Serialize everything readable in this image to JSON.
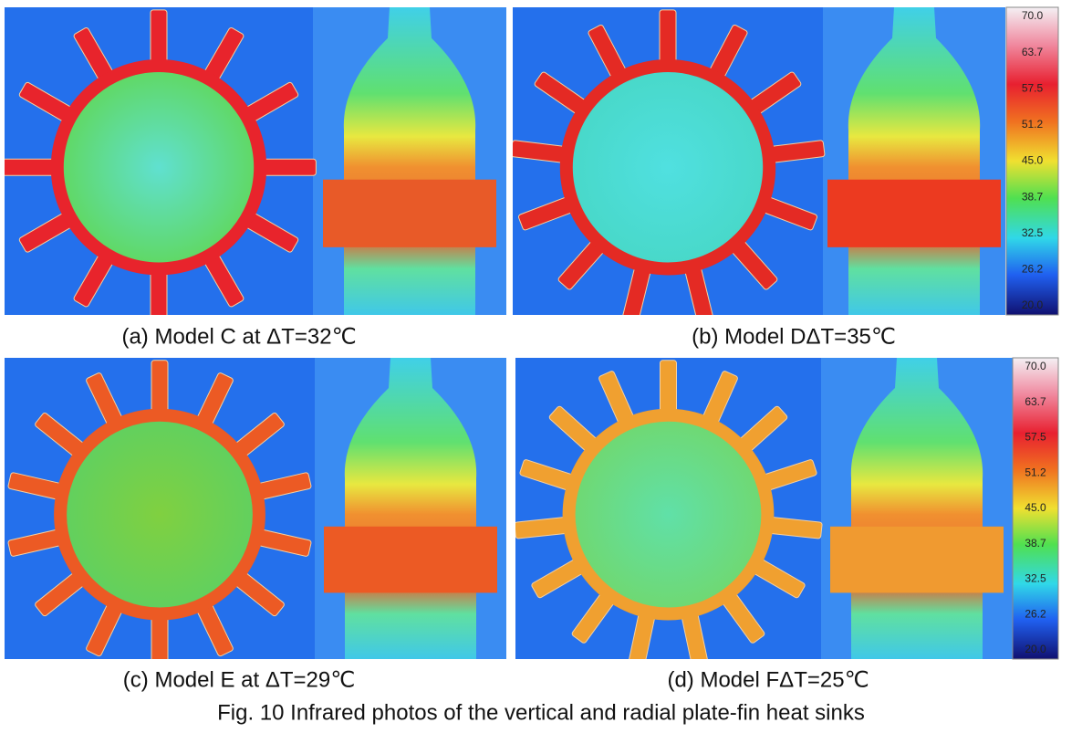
{
  "panels": [
    {
      "caption": "(a) Model C at  ΔT=32℃"
    },
    {
      "caption": "(b) Model DΔT=35℃"
    },
    {
      "caption": "(c) Model E at  ΔT=29℃"
    },
    {
      "caption": "(d) Model FΔT=25℃"
    }
  ],
  "colorbars": [
    {
      "labels": [
        "70.0",
        "63.7",
        "57.5",
        "51.2",
        "45.0",
        "38.7",
        "32.5",
        "26.2",
        "20.0"
      ]
    },
    {
      "labels": [
        "70.0",
        "63.7",
        "57.5",
        "51.2",
        "45.0",
        "38.7",
        "32.5",
        "26.2",
        "20.0"
      ]
    }
  ],
  "figure_caption": "Fig. 10 Infrared photos of the vertical and radial plate-fin heat sinks"
}
